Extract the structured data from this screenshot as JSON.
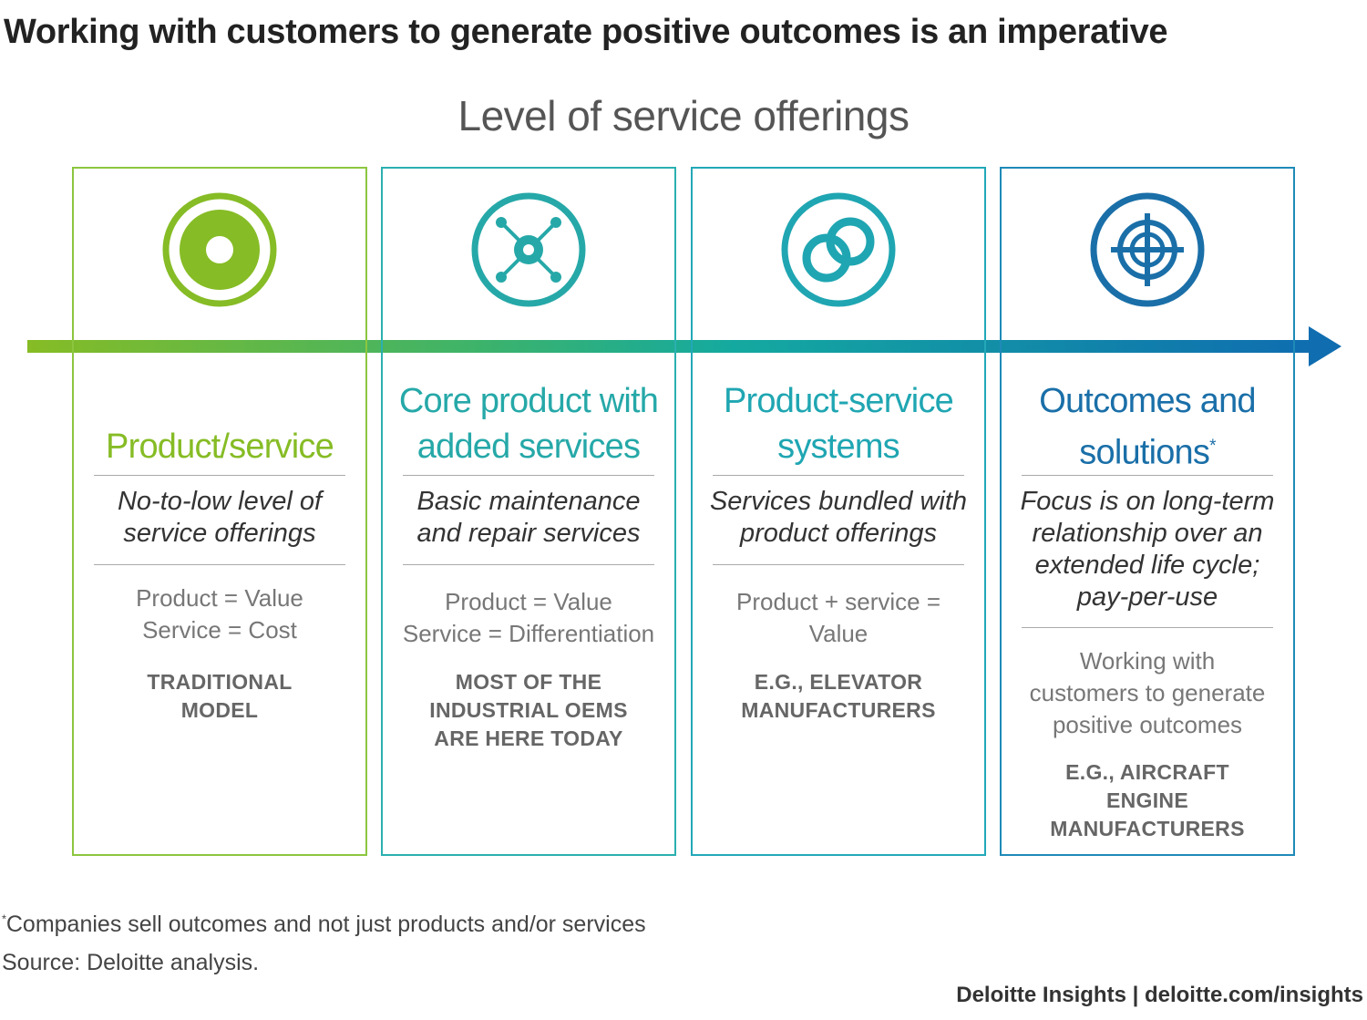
{
  "title": "Working with customers to generate positive outcomes is an imperative",
  "axis_title": "Level of service offerings",
  "colors": {
    "green": "#86bc25",
    "teal1": "#26a8a8",
    "teal2": "#1f9fb0",
    "blue": "#1a6fa8",
    "arrow_start": "#86bc25",
    "arrow_end": "#0f6db0"
  },
  "levels": [
    {
      "icon": "target-circle-icon",
      "title_lines": [
        "Product/service"
      ],
      "description_lines": [
        "No-to-low level of",
        "service offerings"
      ],
      "equation_lines": [
        "Product = Value",
        "Service = Cost"
      ],
      "example_lines": [
        "TRADITIONAL",
        "MODEL"
      ]
    },
    {
      "icon": "network-nodes-icon",
      "title_lines": [
        "Core product with",
        "added services"
      ],
      "description_lines": [
        "Basic maintenance",
        "and repair services"
      ],
      "equation_lines": [
        "Product = Value",
        "Service = Differentiation"
      ],
      "example_lines": [
        "MOST OF THE",
        "INDUSTRIAL OEMS",
        "ARE HERE TODAY"
      ]
    },
    {
      "icon": "linked-rings-icon",
      "title_lines": [
        "Product-service",
        "systems"
      ],
      "description_lines": [
        "Services bundled with",
        "product offerings"
      ],
      "equation_lines": [
        "Product + service =",
        "Value"
      ],
      "example_lines": [
        "E.G., ELEVATOR",
        "MANUFACTURERS"
      ]
    },
    {
      "icon": "crosshair-icon",
      "title_lines": [
        "Outcomes and",
        "solutions"
      ],
      "title_sup": "*",
      "description_lines": [
        "Focus is on long-term",
        "relationship over an",
        "extended life cycle;",
        "pay-per-use"
      ],
      "equation_lines": [
        "Working with",
        "customers to generate",
        "positive outcomes"
      ],
      "example_lines": [
        "E.G., AIRCRAFT",
        "ENGINE",
        "MANUFACTURERS"
      ]
    }
  ],
  "footnote_mark": "*",
  "footnote": "Companies sell outcomes and not just products and/or services",
  "source": "Source: Deloitte analysis.",
  "credit": "Deloitte Insights | deloitte.com/insights"
}
